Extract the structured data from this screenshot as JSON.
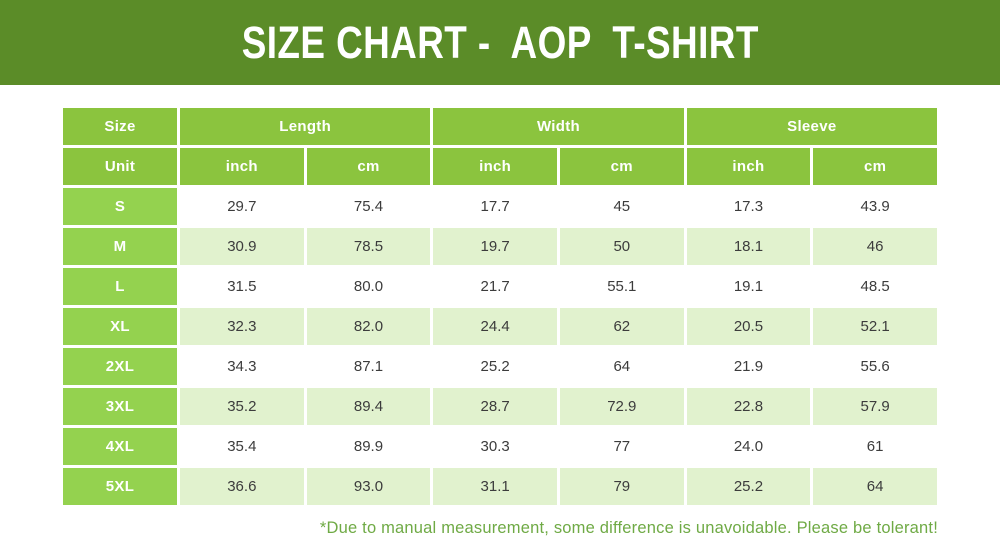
{
  "banner": {
    "title": "SIZE CHART -  AOP  T-SHIRT"
  },
  "chart_data": {
    "type": "table",
    "title": "SIZE CHART - AOP T-SHIRT",
    "group_headers": [
      {
        "label": "Size",
        "colspan": 1
      },
      {
        "label": "Length",
        "colspan": 2
      },
      {
        "label": "Width",
        "colspan": 2
      },
      {
        "label": "Sleeve",
        "colspan": 2
      }
    ],
    "unit_row": [
      "Unit",
      "inch",
      "cm",
      "inch",
      "cm",
      "inch",
      "cm"
    ],
    "rows": [
      {
        "size": "S",
        "values": [
          "29.7",
          "75.4",
          "17.7",
          "45",
          "17.3",
          "43.9"
        ]
      },
      {
        "size": "M",
        "values": [
          "30.9",
          "78.5",
          "19.7",
          "50",
          "18.1",
          "46"
        ]
      },
      {
        "size": "L",
        "values": [
          "31.5",
          "80.0",
          "21.7",
          "55.1",
          "19.1",
          "48.5"
        ]
      },
      {
        "size": "XL",
        "values": [
          "32.3",
          "82.0",
          "24.4",
          "62",
          "20.5",
          "52.1"
        ]
      },
      {
        "size": "2XL",
        "values": [
          "34.3",
          "87.1",
          "25.2",
          "64",
          "21.9",
          "55.6"
        ]
      },
      {
        "size": "3XL",
        "values": [
          "35.2",
          "89.4",
          "28.7",
          "72.9",
          "22.8",
          "57.9"
        ]
      },
      {
        "size": "4XL",
        "values": [
          "35.4",
          "89.9",
          "30.3",
          "77",
          "24.0",
          "61"
        ]
      },
      {
        "size": "5XL",
        "values": [
          "36.6",
          "93.0",
          "31.1",
          "79",
          "25.2",
          "64"
        ]
      }
    ]
  },
  "footer": {
    "note": "*Due to manual measurement, some difference is unavoidable. Please be tolerant!"
  },
  "colors": {
    "banner_green": "#5b8c28",
    "header_green": "#8bc43e",
    "size_cell_green": "#94d24f",
    "row_alt_green": "#e1f2ce",
    "footer_green": "#6faa45",
    "data_text": "#3c3c3c"
  }
}
